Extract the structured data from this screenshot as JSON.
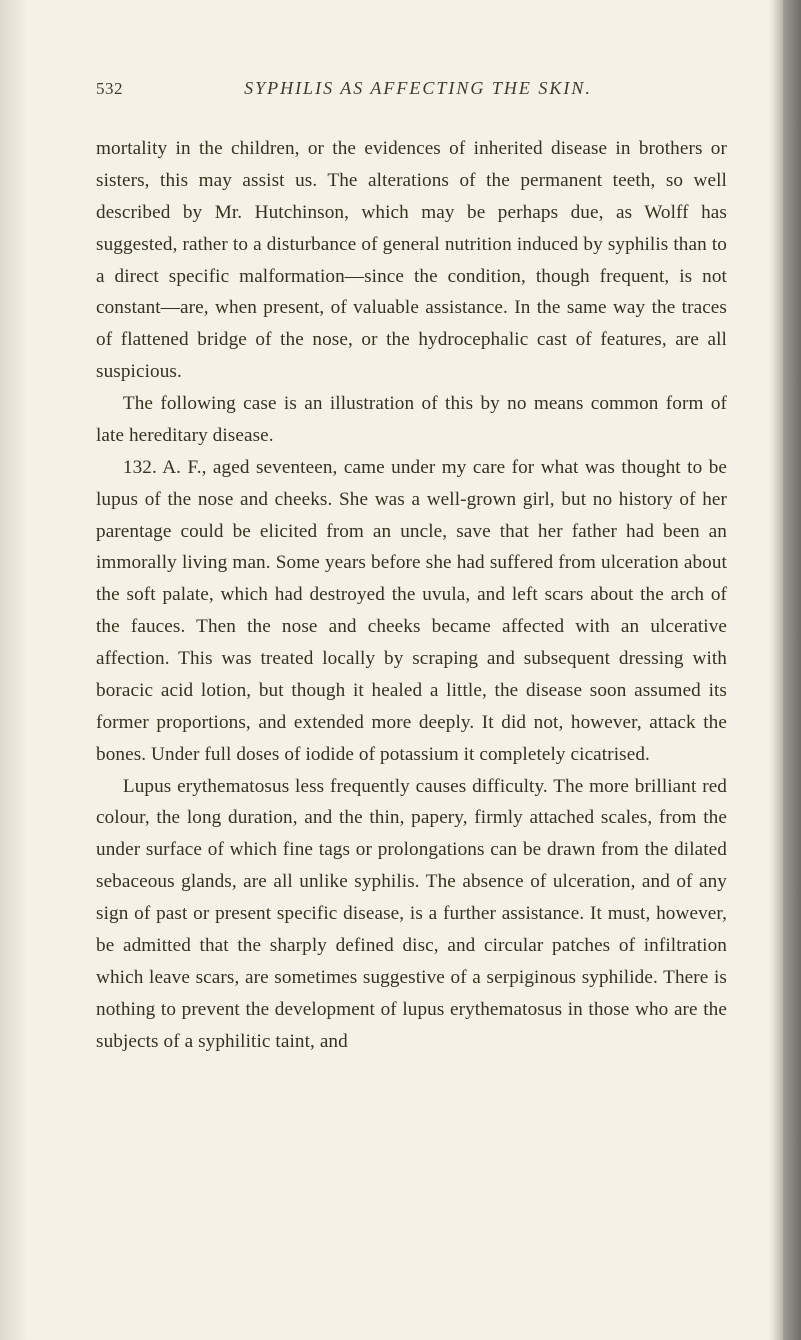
{
  "page": {
    "number": "532",
    "running_title": "SYPHILIS AS AFFECTING THE SKIN.",
    "background_color": "#f5f1e6",
    "text_color": "#36321f",
    "font_family": "Georgia, 'Times New Roman', serif",
    "body_fontsize": 19.2,
    "line_height": 1.66,
    "header_fontsize": 18,
    "pagenum_fontsize": 17
  },
  "paragraphs": [
    "mortality in the children, or the evidences of inherited disease in brothers or sisters, this may assist us. The alterations of the permanent teeth, so well described by Mr. Hutchinson, which may be perhaps due, as Wolff has suggested, rather to a disturbance of general nutrition induced by syphilis than to a direct specific malformation—since the condition, though frequent, is not constant—are, when present, of valuable assistance. In the same way the traces of flattened bridge of the nose, or the hydrocephalic cast of features, are all suspicious.",
    "The following case is an illustration of this by no means common form of late hereditary disease.",
    "132. A. F., aged seventeen, came under my care for what was thought to be lupus of the nose and cheeks. She was a well-grown girl, but no history of her parentage could be elicited from an uncle, save that her father had been an immorally living man. Some years before she had suffered from ulceration about the soft palate, which had destroyed the uvula, and left scars about the arch of the fauces. Then the nose and cheeks became affected with an ulcerative affection. This was treated locally by scraping and subsequent dressing with boracic acid lotion, but though it healed a little, the disease soon assumed its former proportions, and extended more deeply. It did not, however, attack the bones. Under full doses of iodide of potassium it completely cicatrised.",
    "Lupus erythematosus less frequently causes difficulty. The more brilliant red colour, the long duration, and the thin, papery, firmly attached scales, from the under surface of which fine tags or prolongations can be drawn from the dilated sebaceous glands, are all unlike syphilis. The absence of ulceration, and of any sign of past or present specific disease, is a further assistance. It must, however, be admitted that the sharply defined disc, and circular patches of infiltration which leave scars, are sometimes suggestive of a serpiginous syphilide. There is nothing to prevent the development of lupus erythematosus in those who are the subjects of a syphilitic taint, and"
  ]
}
